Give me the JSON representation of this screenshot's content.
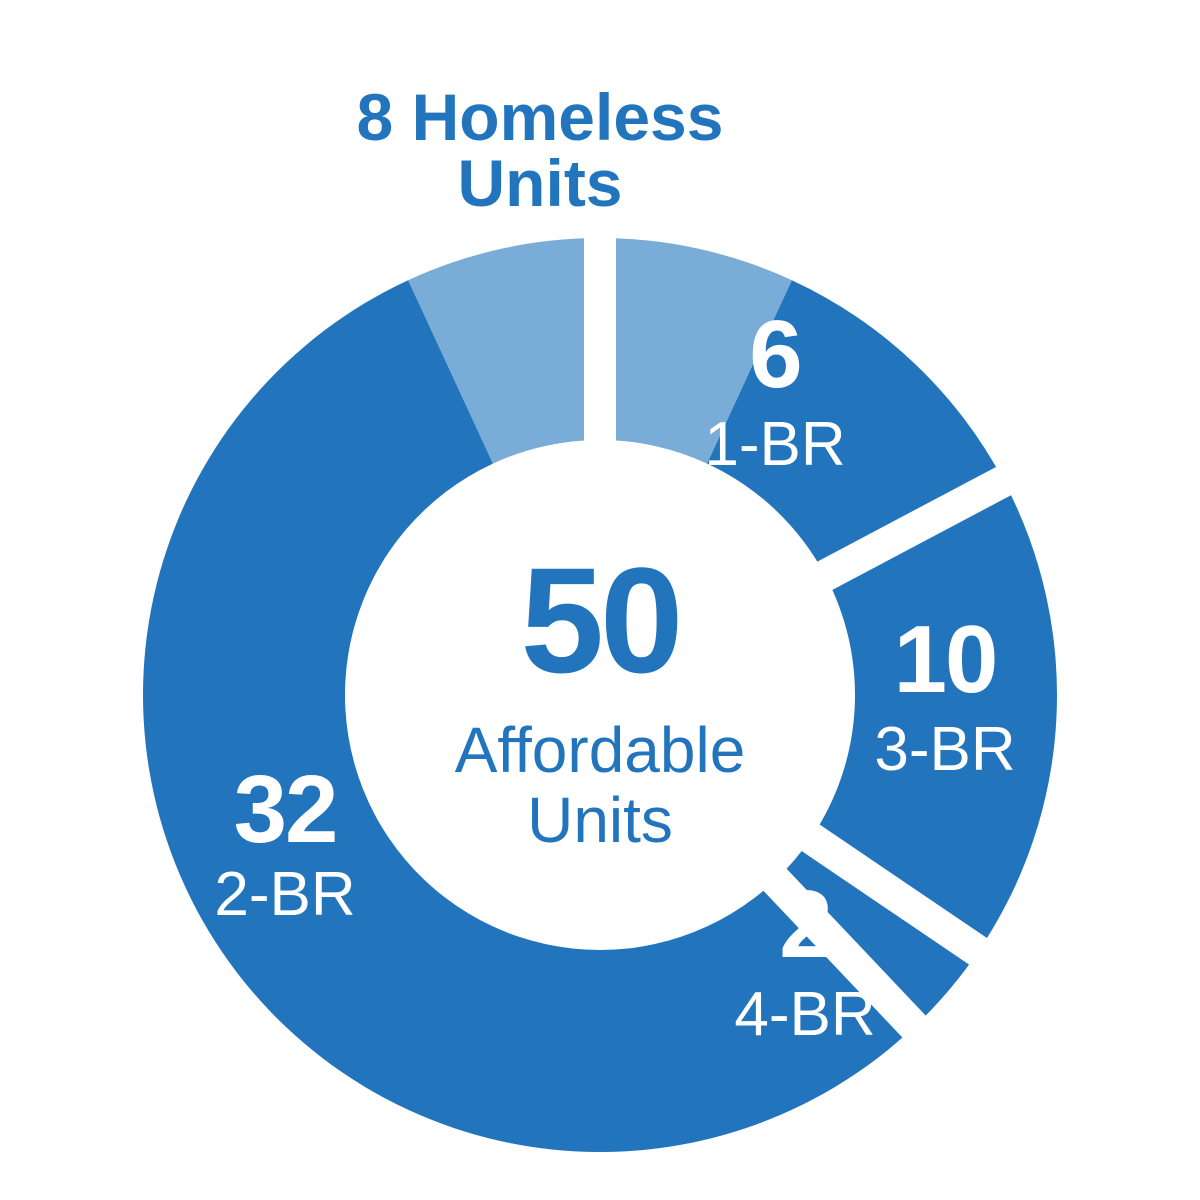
{
  "chart_data": {
    "type": "donut",
    "categories": [
      "Homeless Units",
      "1-BR",
      "3-BR",
      "4-BR",
      "2-BR"
    ],
    "values": [
      8,
      6,
      10,
      2,
      32
    ],
    "colors": [
      "#79acd7",
      "#2275bd",
      "#2275bd",
      "#2275bd",
      "#2275bd"
    ],
    "center_value": 50,
    "center_label": "Affordable Units"
  }
}
